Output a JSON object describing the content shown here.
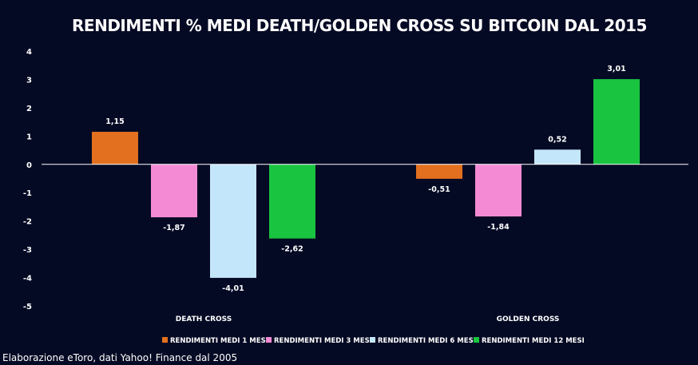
{
  "chart_data": {
    "type": "bar",
    "title": "RENDIMENTI % MEDI DEATH/GOLDEN CROSS SU BITCOIN DAL 2015",
    "categories": [
      "DEATH CROSS",
      "GOLDEN CROSS"
    ],
    "series": [
      {
        "name": "RENDIMENTI MEDI 1 MESE",
        "color": "#e2701f",
        "values": [
          1.15,
          -0.51
        ],
        "labels": [
          "1,15",
          "-0,51"
        ]
      },
      {
        "name": "RENDIMENTI MEDI 3 MESI",
        "color": "#f48ad4",
        "values": [
          -1.87,
          -1.84
        ],
        "labels": [
          "-1,87",
          "-1,84"
        ]
      },
      {
        "name": "RENDIMENTI MEDI 6 MESI",
        "color": "#c4e6fb",
        "values": [
          -4.01,
          0.52
        ],
        "labels": [
          "-4,01",
          "0,52"
        ]
      },
      {
        "name": "RENDIMENTI MEDI 12 MESI",
        "color": "#19c440",
        "values": [
          -2.62,
          3.01
        ],
        "labels": [
          "-2,62",
          "3,01"
        ]
      }
    ],
    "ylim": [
      -5,
      4
    ],
    "yticks": [
      4,
      3,
      2,
      1,
      0,
      -1,
      -2,
      -3,
      -4,
      -5
    ],
    "ytick_labels": [
      "4",
      "3",
      "2",
      "1",
      "0",
      "-1",
      "-2",
      "-3",
      "-4",
      "-5"
    ],
    "grid": false,
    "legend_position": "bottom"
  },
  "source_note": "Elaborazione eToro, dati Yahoo! Finance dal 2005"
}
